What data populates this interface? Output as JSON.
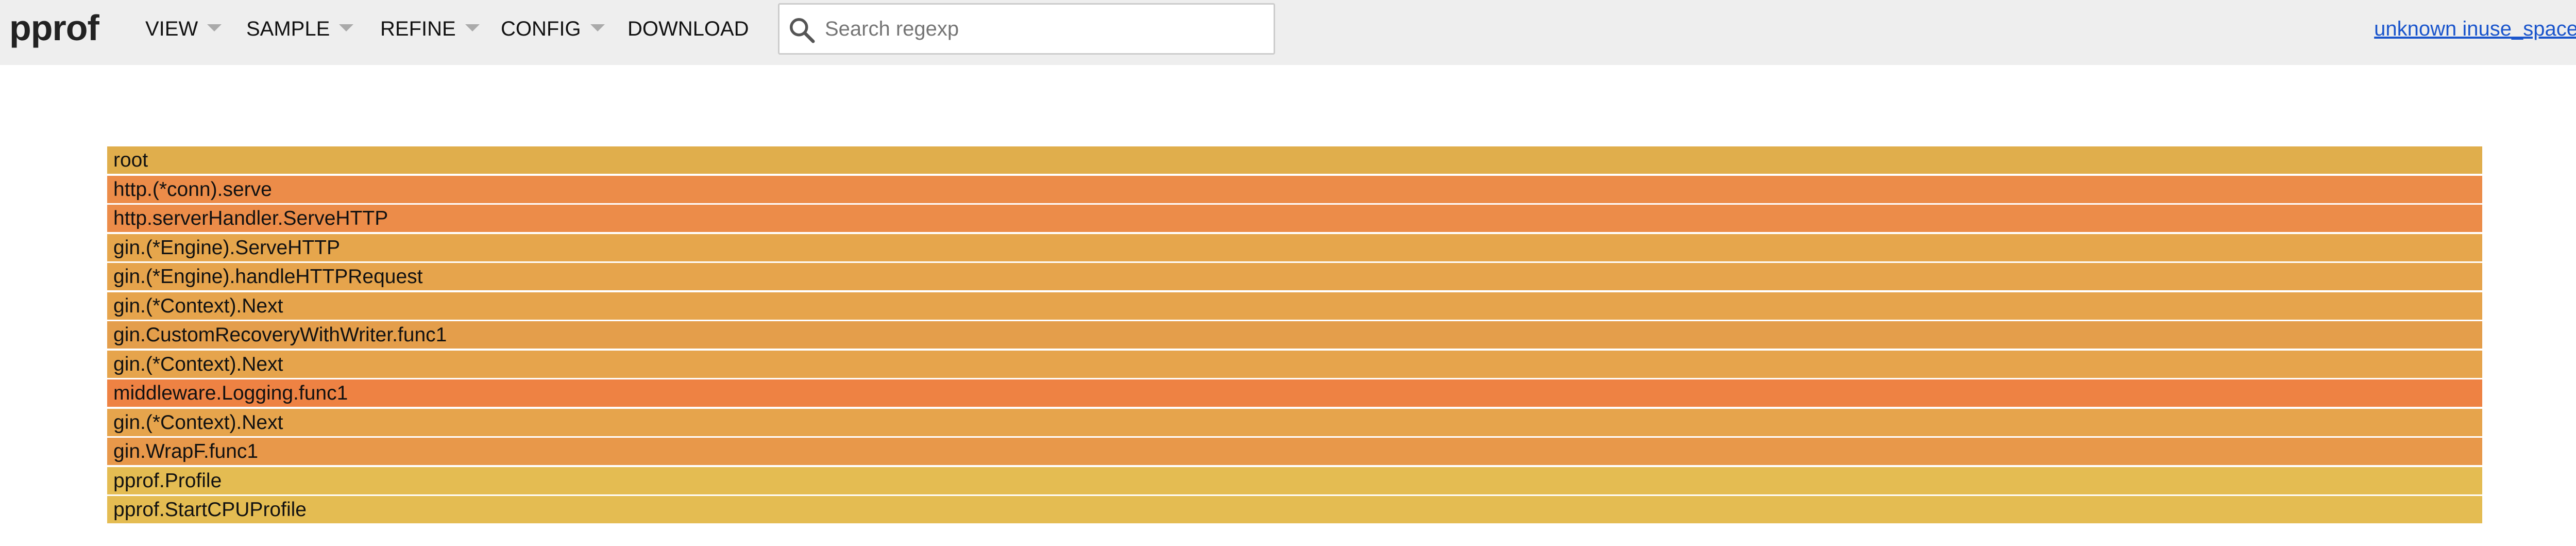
{
  "header": {
    "logo": "pprof",
    "menus": [
      {
        "label": "VIEW"
      },
      {
        "label": "SAMPLE"
      },
      {
        "label": "REFINE"
      },
      {
        "label": "CONFIG"
      }
    ],
    "download_label": "DOWNLOAD",
    "search": {
      "placeholder": "Search regexp",
      "value": ""
    },
    "profile_link": "unknown inuse_space"
  },
  "flamegraph": {
    "frames": [
      {
        "label": "root",
        "color": "#e0ae4c"
      },
      {
        "label": "http.(*conn).serve",
        "color": "#ec8c49"
      },
      {
        "label": "http.serverHandler.ServeHTTP",
        "color": "#ec8c49"
      },
      {
        "label": "gin.(*Engine).ServeHTTP",
        "color": "#e6a64c"
      },
      {
        "label": "gin.(*Engine).handleHTTPRequest",
        "color": "#e6a44c"
      },
      {
        "label": "gin.(*Context).Next",
        "color": "#e6a44c"
      },
      {
        "label": "gin.CustomRecoveryWithWriter.func1",
        "color": "#e49e4b"
      },
      {
        "label": "gin.(*Context).Next",
        "color": "#e6a44c"
      },
      {
        "label": "middleware.Logging.func1",
        "color": "#ee8243"
      },
      {
        "label": "gin.(*Context).Next",
        "color": "#e6a44c"
      },
      {
        "label": "gin.WrapF.func1",
        "color": "#e8984a"
      },
      {
        "label": "pprof.Profile",
        "color": "#e4bc52"
      },
      {
        "label": "pprof.StartCPUProfile",
        "color": "#e4bc52"
      }
    ]
  }
}
